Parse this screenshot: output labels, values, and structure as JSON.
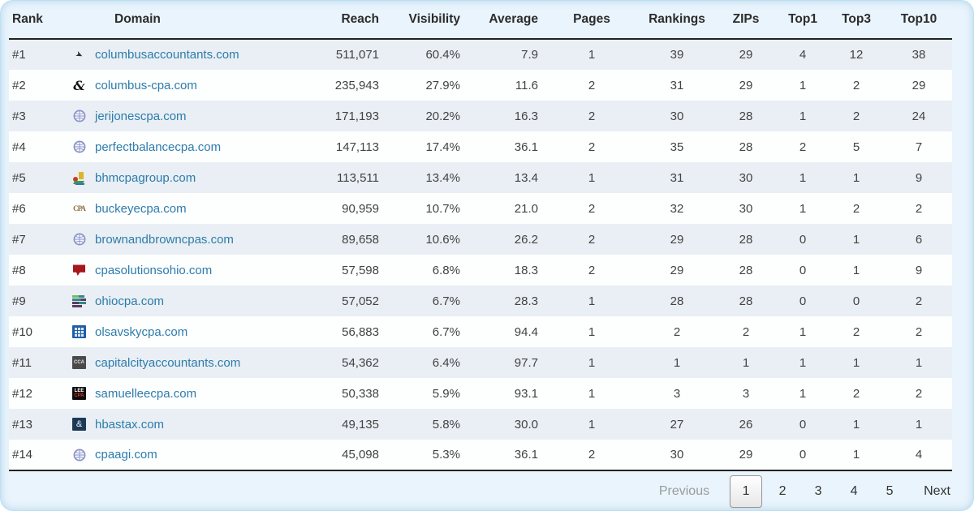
{
  "table": {
    "columns": [
      "Rank",
      "Domain",
      "Reach",
      "Visibility",
      "Average",
      "Pages",
      "Rankings",
      "ZIPs",
      "Top1",
      "Top3",
      "Top10"
    ],
    "rows": [
      {
        "rank": "#1",
        "domain": "columbusaccountants.com",
        "icon": "swoosh-favicon",
        "reach": "511,071",
        "visibility": "60.4%",
        "average": "7.9",
        "pages": "1",
        "rankings": "39",
        "zips": "29",
        "top1": "4",
        "top3": "12",
        "top10": "38"
      },
      {
        "rank": "#2",
        "domain": "columbus-cpa.com",
        "icon": "ampersand-favicon",
        "icon_text": "&",
        "reach": "235,943",
        "visibility": "27.9%",
        "average": "11.6",
        "pages": "2",
        "rankings": "31",
        "zips": "29",
        "top1": "1",
        "top3": "2",
        "top10": "29"
      },
      {
        "rank": "#3",
        "domain": "jerijonescpa.com",
        "icon": "globe-favicon",
        "reach": "171,193",
        "visibility": "20.2%",
        "average": "16.3",
        "pages": "2",
        "rankings": "30",
        "zips": "28",
        "top1": "1",
        "top3": "2",
        "top10": "24"
      },
      {
        "rank": "#4",
        "domain": "perfectbalancecpa.com",
        "icon": "globe-favicon",
        "reach": "147,113",
        "visibility": "17.4%",
        "average": "36.1",
        "pages": "2",
        "rankings": "35",
        "zips": "28",
        "top1": "2",
        "top3": "5",
        "top10": "7"
      },
      {
        "rank": "#5",
        "domain": "bhmcpagroup.com",
        "icon": "chart-favicon",
        "reach": "113,511",
        "visibility": "13.4%",
        "average": "13.4",
        "pages": "1",
        "rankings": "31",
        "zips": "30",
        "top1": "1",
        "top3": "1",
        "top10": "9"
      },
      {
        "rank": "#6",
        "domain": "buckeyecpa.com",
        "icon": "cpa-text-favicon",
        "icon_text": "CPA",
        "reach": "90,959",
        "visibility": "10.7%",
        "average": "21.0",
        "pages": "2",
        "rankings": "32",
        "zips": "30",
        "top1": "1",
        "top3": "2",
        "top10": "2"
      },
      {
        "rank": "#7",
        "domain": "brownandbrowncpas.com",
        "icon": "globe-favicon",
        "reach": "89,658",
        "visibility": "10.6%",
        "average": "26.2",
        "pages": "2",
        "rankings": "29",
        "zips": "28",
        "top1": "0",
        "top3": "1",
        "top10": "6"
      },
      {
        "rank": "#8",
        "domain": "cpasolutionsohio.com",
        "icon": "red-bookmark-favicon",
        "reach": "57,598",
        "visibility": "6.8%",
        "average": "18.3",
        "pages": "2",
        "rankings": "29",
        "zips": "28",
        "top1": "0",
        "top3": "1",
        "top10": "9"
      },
      {
        "rank": "#9",
        "domain": "ohiocpa.com",
        "icon": "stripes-favicon",
        "reach": "57,052",
        "visibility": "6.7%",
        "average": "28.3",
        "pages": "1",
        "rankings": "28",
        "zips": "28",
        "top1": "0",
        "top3": "0",
        "top10": "2"
      },
      {
        "rank": "#10",
        "domain": "olsavskycpa.com",
        "icon": "grid-favicon",
        "reach": "56,883",
        "visibility": "6.7%",
        "average": "94.4",
        "pages": "1",
        "rankings": "2",
        "zips": "2",
        "top1": "1",
        "top3": "2",
        "top10": "2"
      },
      {
        "rank": "#11",
        "domain": "capitalcityaccountants.com",
        "icon": "cca-text-favicon",
        "icon_text": "CCA",
        "reach": "54,362",
        "visibility": "6.4%",
        "average": "97.7",
        "pages": "1",
        "rankings": "1",
        "zips": "1",
        "top1": "1",
        "top3": "1",
        "top10": "1"
      },
      {
        "rank": "#12",
        "domain": "samuelleecpa.com",
        "icon": "lee-cpa-favicon",
        "icon_lines": [
          "LEE",
          "CPA"
        ],
        "reach": "50,338",
        "visibility": "5.9%",
        "average": "93.1",
        "pages": "1",
        "rankings": "3",
        "zips": "3",
        "top1": "1",
        "top3": "2",
        "top10": "2"
      },
      {
        "rank": "#13",
        "domain": "hbastax.com",
        "icon": "navy-ampersand-favicon",
        "icon_text": "&",
        "reach": "49,135",
        "visibility": "5.8%",
        "average": "30.0",
        "pages": "1",
        "rankings": "27",
        "zips": "26",
        "top1": "0",
        "top3": "1",
        "top10": "1"
      },
      {
        "rank": "#14",
        "domain": "cpaagi.com",
        "icon": "globe-favicon",
        "reach": "45,098",
        "visibility": "5.3%",
        "average": "36.1",
        "pages": "2",
        "rankings": "30",
        "zips": "29",
        "top1": "0",
        "top3": "1",
        "top10": "4"
      }
    ]
  },
  "pagination": {
    "previous_label": "Previous",
    "pages": [
      "1",
      "2",
      "3",
      "4",
      "5"
    ],
    "current_page": "1",
    "next_label": "Next"
  },
  "colors": {
    "card_background": "#e9f4fc",
    "alt_row_background": "#e9eff4",
    "domain_link": "#2d7cab",
    "header_rule": "#222222"
  }
}
